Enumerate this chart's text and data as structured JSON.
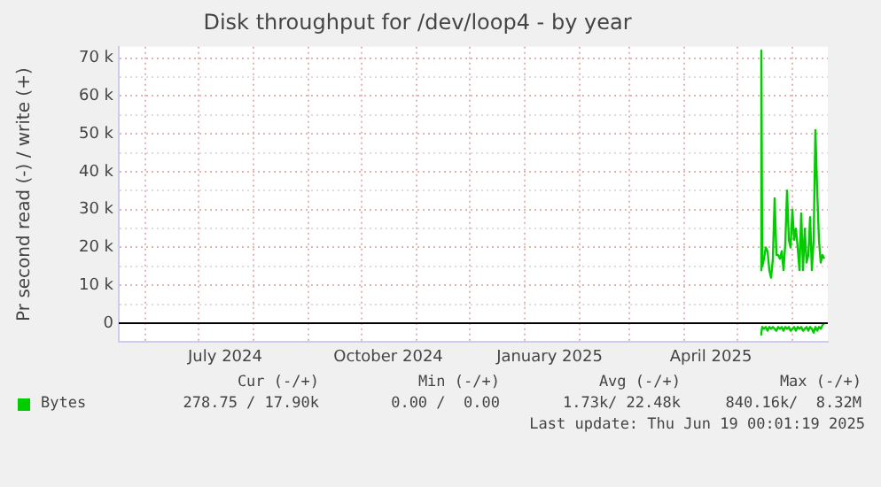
{
  "chart_data": {
    "type": "line",
    "title": "Disk throughput for /dev/loop4 - by year",
    "ylabel": "Pr second read (-) / write (+)",
    "x": [
      "2025-05-14",
      "2025-05-14T12:00",
      "2025-05-15",
      "2025-05-16",
      "2025-05-17",
      "2025-05-18",
      "2025-05-19",
      "2025-05-20",
      "2025-05-21",
      "2025-05-22",
      "2025-05-23",
      "2025-05-24",
      "2025-05-25",
      "2025-05-26",
      "2025-05-27",
      "2025-05-28",
      "2025-05-29",
      "2025-05-30",
      "2025-05-31",
      "2025-06-01",
      "2025-06-02",
      "2025-06-03",
      "2025-06-04",
      "2025-06-05",
      "2025-06-06",
      "2025-06-07",
      "2025-06-08",
      "2025-06-09",
      "2025-06-10",
      "2025-06-11",
      "2025-06-12",
      "2025-06-13",
      "2025-06-14",
      "2025-06-15",
      "2025-06-16",
      "2025-06-17",
      "2025-06-18",
      "2025-06-19"
    ],
    "series": [
      {
        "name": "Bytes",
        "color": "#00cc00",
        "values": [
          14000,
          72000,
          15000,
          17000,
          20000,
          19000,
          14000,
          12000,
          17000,
          33000,
          18000,
          18000,
          17000,
          19000,
          14000,
          21000,
          35000,
          22000,
          20000,
          30000,
          22000,
          25000,
          20000,
          14000,
          29000,
          14000,
          25000,
          16000,
          18000,
          28000,
          14000,
          22000,
          51000,
          35000,
          22000,
          16000,
          18000,
          17000
        ]
      },
      {
        "color": "#00cc00",
        "values": [
          -3000,
          -2500,
          -1000,
          -1500,
          -1000,
          -2000,
          -1000,
          -1500,
          -1000,
          -1500,
          -2000,
          -1000,
          -1500,
          -1000,
          -2000,
          -1000,
          -1500,
          -1000,
          -2000,
          -1500,
          -1000,
          -2000,
          -1000,
          -1500,
          -1000,
          -2000,
          -1500,
          -1000,
          -2000,
          -1000,
          -1500,
          -2500,
          -1000,
          -2000,
          -1000,
          -1500,
          -500,
          0
        ]
      }
    ],
    "xlim": [
      "2024-05-17",
      "2025-06-21"
    ],
    "xticks": [
      {
        "value": "2024-06-01",
        "label": null
      },
      {
        "value": "2024-07-01",
        "label": null
      },
      {
        "value": "2024-07-16",
        "label": "July 2024"
      },
      {
        "value": "2024-08-01",
        "label": null
      },
      {
        "value": "2024-09-01",
        "label": null
      },
      {
        "value": "2024-10-01",
        "label": null
      },
      {
        "value": "2024-10-16",
        "label": "October 2024"
      },
      {
        "value": "2024-11-01",
        "label": null
      },
      {
        "value": "2024-12-01",
        "label": null
      },
      {
        "value": "2025-01-01",
        "label": null
      },
      {
        "value": "2025-01-15",
        "label": "January 2025"
      },
      {
        "value": "2025-02-01",
        "label": null
      },
      {
        "value": "2025-03-01",
        "label": null
      },
      {
        "value": "2025-04-01",
        "label": null
      },
      {
        "value": "2025-04-16",
        "label": "April 2025"
      },
      {
        "value": "2025-05-01",
        "label": null
      },
      {
        "value": "2025-06-01",
        "label": null
      }
    ],
    "ylim": [
      -5000,
      73000
    ],
    "yticks": [
      {
        "value": -5000,
        "label": null
      },
      {
        "value": 0,
        "label": "0"
      },
      {
        "value": 5000,
        "label": null
      },
      {
        "value": 10000,
        "label": "10 k"
      },
      {
        "value": 15000,
        "label": null
      },
      {
        "value": 20000,
        "label": "20 k"
      },
      {
        "value": 25000,
        "label": null
      },
      {
        "value": 30000,
        "label": "30 k"
      },
      {
        "value": 35000,
        "label": null
      },
      {
        "value": 40000,
        "label": "40 k"
      },
      {
        "value": 45000,
        "label": null
      },
      {
        "value": 50000,
        "label": "50 k"
      },
      {
        "value": 55000,
        "label": null
      },
      {
        "value": 60000,
        "label": "60 k"
      },
      {
        "value": 65000,
        "label": null
      },
      {
        "value": 70000,
        "label": "70 k"
      }
    ],
    "ref_lines": [
      {
        "axis": "y",
        "value": 0,
        "color": "#000000"
      }
    ],
    "grid": true,
    "legend": "bottom left",
    "marker": "none",
    "line_style": "solid",
    "annotations": [
      "Cur (-/+)",
      "Min (-/+)",
      "Avg (-/+)",
      "Max (-/+)",
      "278.75 / 17.90k",
      "0.00 /  0.00",
      "1.73k/ 22.48k",
      "840.16k/  8.32M",
      "Last update: Thu Jun 19 00:01:19 2025"
    ]
  }
}
